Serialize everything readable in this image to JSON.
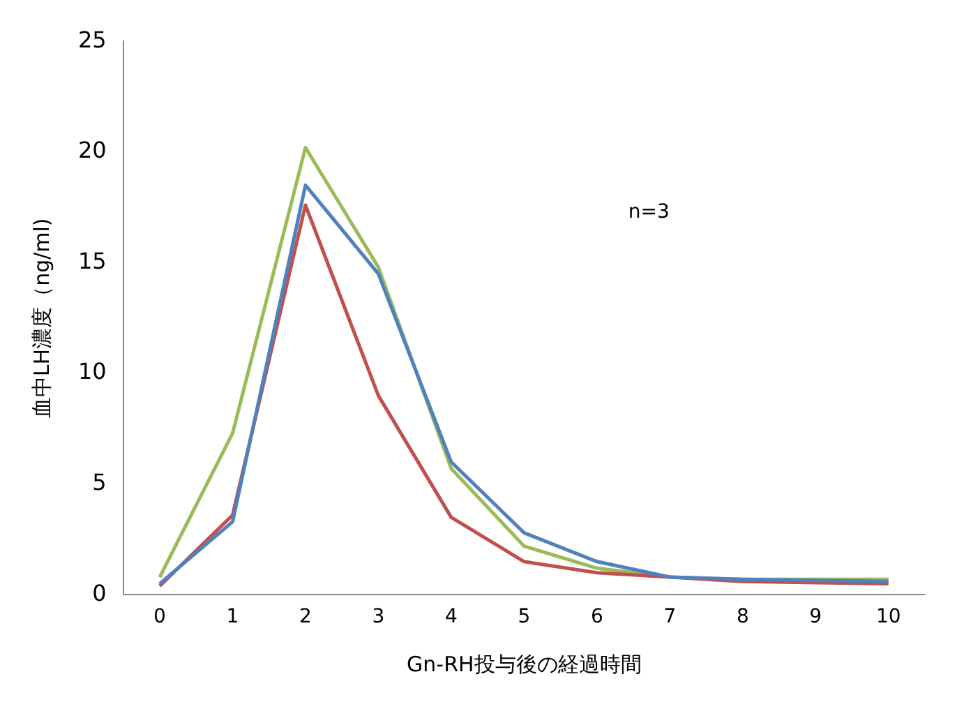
{
  "chart_data": {
    "type": "line",
    "xlabel": "Gn-RH投与後の経過時間",
    "ylabel": "血中LH濃度（ng/ml)",
    "annotations": [
      "n=3"
    ],
    "categories": [
      "0",
      "1",
      "2",
      "3",
      "4",
      "5",
      "6",
      "7",
      "8",
      "9",
      "10"
    ],
    "series": [
      {
        "color": "#4f81bd",
        "values": [
          0.5,
          3.3,
          18.5,
          14.5,
          6.0,
          2.8,
          1.5,
          0.8,
          0.7,
          0.65,
          0.6
        ]
      },
      {
        "color": "#c0504d",
        "values": [
          0.4,
          3.6,
          17.6,
          9.0,
          3.5,
          1.5,
          1.0,
          0.8,
          0.6,
          0.55,
          0.5
        ]
      },
      {
        "color": "#9bbb59",
        "values": [
          0.8,
          7.3,
          20.2,
          14.8,
          5.7,
          2.2,
          1.2,
          0.8,
          0.7,
          0.7,
          0.7
        ]
      }
    ],
    "ylim": [
      0,
      25
    ],
    "yticks": [
      0,
      5,
      10,
      15,
      20,
      25
    ],
    "grid": false,
    "legend": false,
    "marker": "none",
    "line_style": "solid"
  }
}
